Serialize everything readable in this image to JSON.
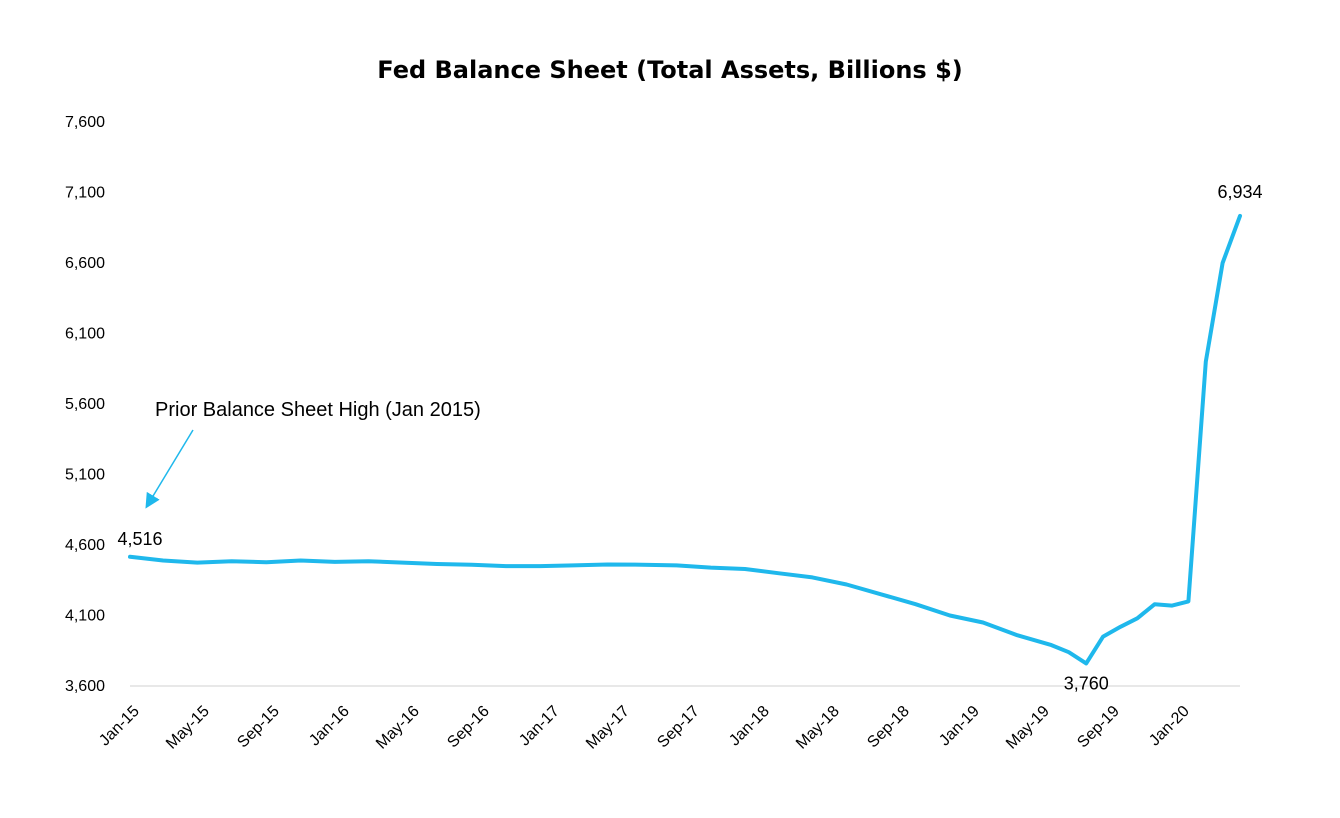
{
  "chart_data": {
    "type": "line",
    "title": "Fed Balance Sheet (Total Assets, Billions $)",
    "xlabel": "",
    "ylabel": "",
    "ylim": [
      3600,
      7600
    ],
    "y_ticks": [
      3600,
      4100,
      4600,
      5100,
      5600,
      6100,
      6600,
      7100,
      7600
    ],
    "y_tick_labels": [
      "3,600",
      "4,100",
      "4,600",
      "5,100",
      "5,600",
      "6,100",
      "6,600",
      "7,100",
      "7,600"
    ],
    "x_tick_labels": [
      "Jan-15",
      "May-15",
      "Sep-15",
      "Jan-16",
      "May-16",
      "Sep-16",
      "Jan-17",
      "May-17",
      "Sep-17",
      "Jan-18",
      "May-18",
      "Sep-18",
      "Jan-19",
      "May-19",
      "Sep-19",
      "Jan-20"
    ],
    "grid": false,
    "series_color": "#1fb8ec",
    "series": [
      {
        "x": [
          "2015-01",
          "2015-03",
          "2015-05",
          "2015-07",
          "2015-09",
          "2015-11",
          "2016-01",
          "2016-03",
          "2016-05",
          "2016-07",
          "2016-09",
          "2016-11",
          "2017-01",
          "2017-03",
          "2017-05",
          "2017-07",
          "2017-09",
          "2017-11",
          "2018-01",
          "2018-03",
          "2018-05",
          "2018-07",
          "2018-09",
          "2018-11",
          "2019-01",
          "2019-03",
          "2019-05",
          "2019-07",
          "2019-08",
          "2019-09",
          "2019-10",
          "2019-11",
          "2019-12",
          "2020-01",
          "2020-02",
          "2020-03",
          "2020-04",
          "2020-05",
          "2020-06"
        ],
        "values": [
          4516,
          4490,
          4475,
          4485,
          4478,
          4490,
          4480,
          4485,
          4475,
          4465,
          4460,
          4450,
          4450,
          4455,
          4462,
          4460,
          4455,
          4440,
          4430,
          4400,
          4370,
          4320,
          4250,
          4180,
          4100,
          4050,
          3960,
          3890,
          3840,
          3760,
          3950,
          4020,
          4080,
          4180,
          4170,
          4200,
          5900,
          6600,
          6934
        ]
      }
    ],
    "data_labels": [
      {
        "text": "4,516",
        "x": "2015-01",
        "value": 4516
      },
      {
        "text": "3,760",
        "x": "2019-09",
        "value": 3760
      },
      {
        "text": "6,934",
        "x": "2020-06",
        "value": 6934
      }
    ],
    "annotation": {
      "text": "Prior Balance Sheet High (Jan 2015)",
      "points_to": "2015-01"
    }
  }
}
